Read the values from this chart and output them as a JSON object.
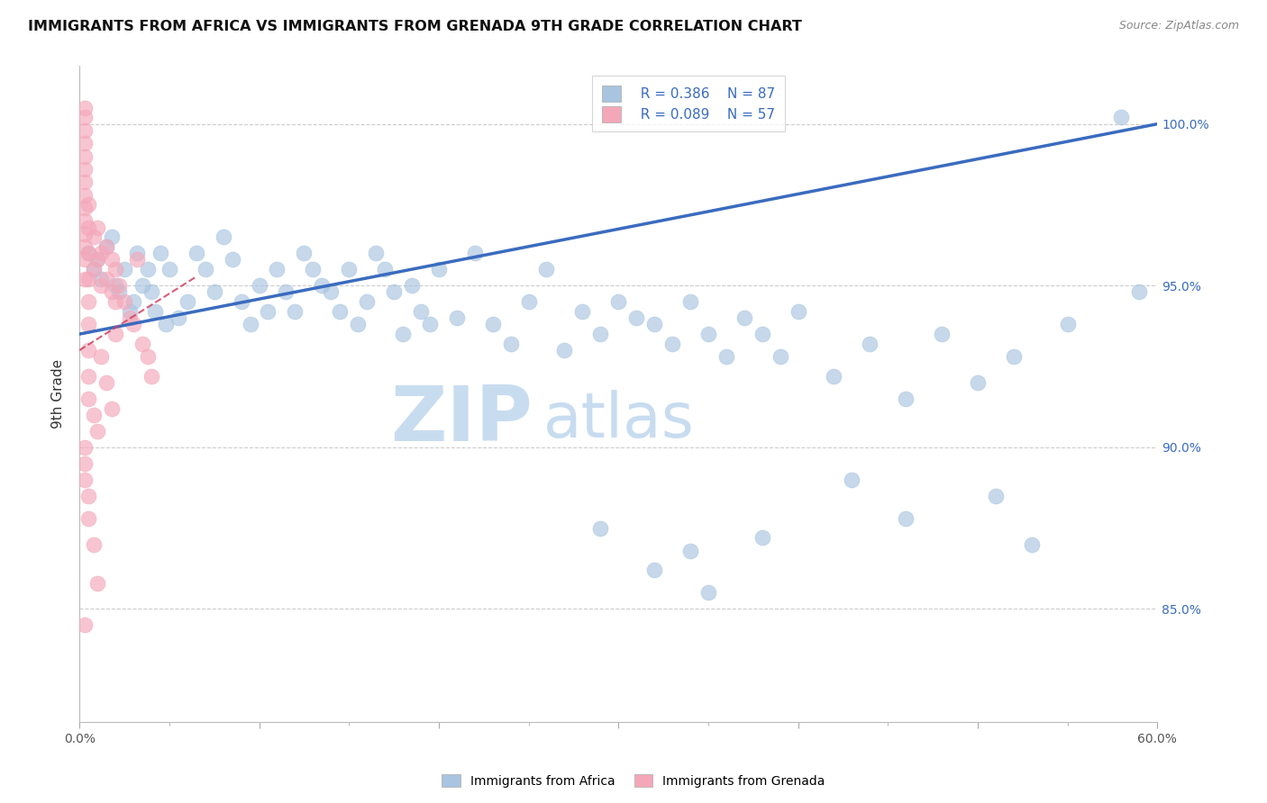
{
  "title": "IMMIGRANTS FROM AFRICA VS IMMIGRANTS FROM GRENADA 9TH GRADE CORRELATION CHART",
  "source": "Source: ZipAtlas.com",
  "ylabel": "9th Grade",
  "ytick_labels": [
    "100.0%",
    "95.0%",
    "90.0%",
    "85.0%"
  ],
  "ytick_values": [
    1.0,
    0.95,
    0.9,
    0.85
  ],
  "xlim": [
    0.0,
    0.6
  ],
  "ylim": [
    0.815,
    1.018
  ],
  "legend_blue_r": "R = 0.386",
  "legend_blue_n": "N = 87",
  "legend_pink_r": "R = 0.089",
  "legend_pink_n": "N = 57",
  "legend_label_blue": "Immigrants from Africa",
  "legend_label_pink": "Immigrants from Grenada",
  "blue_color": "#A8C4E0",
  "pink_color": "#F4A7B9",
  "blue_line_color": "#3A6BBF",
  "pink_line_color": "#D04060",
  "watermark_zip": "ZIP",
  "watermark_atlas": "atlas",
  "watermark_color": "#C8DCF0",
  "blue_scatter_x": [
    0.005,
    0.008,
    0.01,
    0.012,
    0.015,
    0.018,
    0.02,
    0.022,
    0.025,
    0.028,
    0.03,
    0.032,
    0.035,
    0.038,
    0.04,
    0.042,
    0.045,
    0.048,
    0.05,
    0.055,
    0.06,
    0.065,
    0.07,
    0.075,
    0.08,
    0.085,
    0.09,
    0.095,
    0.1,
    0.105,
    0.11,
    0.115,
    0.12,
    0.125,
    0.13,
    0.135,
    0.14,
    0.145,
    0.15,
    0.155,
    0.16,
    0.165,
    0.17,
    0.175,
    0.18,
    0.185,
    0.19,
    0.195,
    0.2,
    0.21,
    0.22,
    0.23,
    0.24,
    0.25,
    0.26,
    0.27,
    0.28,
    0.29,
    0.3,
    0.31,
    0.32,
    0.33,
    0.34,
    0.35,
    0.36,
    0.37,
    0.38,
    0.39,
    0.4,
    0.42,
    0.44,
    0.46,
    0.48,
    0.5,
    0.52,
    0.55,
    0.58,
    0.29,
    0.32,
    0.35,
    0.34,
    0.38,
    0.43,
    0.46,
    0.51,
    0.53,
    0.59
  ],
  "blue_scatter_y": [
    0.96,
    0.955,
    0.958,
    0.952,
    0.962,
    0.965,
    0.95,
    0.948,
    0.955,
    0.942,
    0.945,
    0.96,
    0.95,
    0.955,
    0.948,
    0.942,
    0.96,
    0.938,
    0.955,
    0.94,
    0.945,
    0.96,
    0.955,
    0.948,
    0.965,
    0.958,
    0.945,
    0.938,
    0.95,
    0.942,
    0.955,
    0.948,
    0.942,
    0.96,
    0.955,
    0.95,
    0.948,
    0.942,
    0.955,
    0.938,
    0.945,
    0.96,
    0.955,
    0.948,
    0.935,
    0.95,
    0.942,
    0.938,
    0.955,
    0.94,
    0.96,
    0.938,
    0.932,
    0.945,
    0.955,
    0.93,
    0.942,
    0.935,
    0.945,
    0.94,
    0.938,
    0.932,
    0.945,
    0.935,
    0.928,
    0.94,
    0.935,
    0.928,
    0.942,
    0.922,
    0.932,
    0.915,
    0.935,
    0.92,
    0.928,
    0.938,
    1.002,
    0.875,
    0.862,
    0.855,
    0.868,
    0.872,
    0.89,
    0.878,
    0.885,
    0.87,
    0.948
  ],
  "pink_scatter_x": [
    0.003,
    0.003,
    0.003,
    0.003,
    0.003,
    0.003,
    0.003,
    0.003,
    0.003,
    0.003,
    0.003,
    0.003,
    0.005,
    0.005,
    0.005,
    0.005,
    0.005,
    0.005,
    0.005,
    0.005,
    0.008,
    0.008,
    0.01,
    0.01,
    0.012,
    0.012,
    0.015,
    0.015,
    0.018,
    0.018,
    0.02,
    0.02,
    0.022,
    0.025,
    0.028,
    0.03,
    0.032,
    0.035,
    0.038,
    0.04,
    0.003,
    0.003,
    0.005,
    0.008,
    0.01,
    0.012,
    0.015,
    0.018,
    0.02,
    0.003,
    0.003,
    0.003,
    0.005,
    0.005,
    0.008,
    0.01,
    0.003
  ],
  "pink_scatter_y": [
    1.005,
    1.002,
    0.998,
    0.994,
    0.99,
    0.986,
    0.982,
    0.978,
    0.974,
    0.97,
    0.966,
    0.962,
    0.975,
    0.968,
    0.96,
    0.952,
    0.945,
    0.938,
    0.93,
    0.922,
    0.965,
    0.955,
    0.968,
    0.958,
    0.96,
    0.95,
    0.962,
    0.952,
    0.958,
    0.948,
    0.955,
    0.945,
    0.95,
    0.945,
    0.94,
    0.938,
    0.958,
    0.932,
    0.928,
    0.922,
    0.958,
    0.952,
    0.915,
    0.91,
    0.905,
    0.928,
    0.92,
    0.912,
    0.935,
    0.9,
    0.895,
    0.89,
    0.885,
    0.878,
    0.87,
    0.858,
    0.845
  ]
}
